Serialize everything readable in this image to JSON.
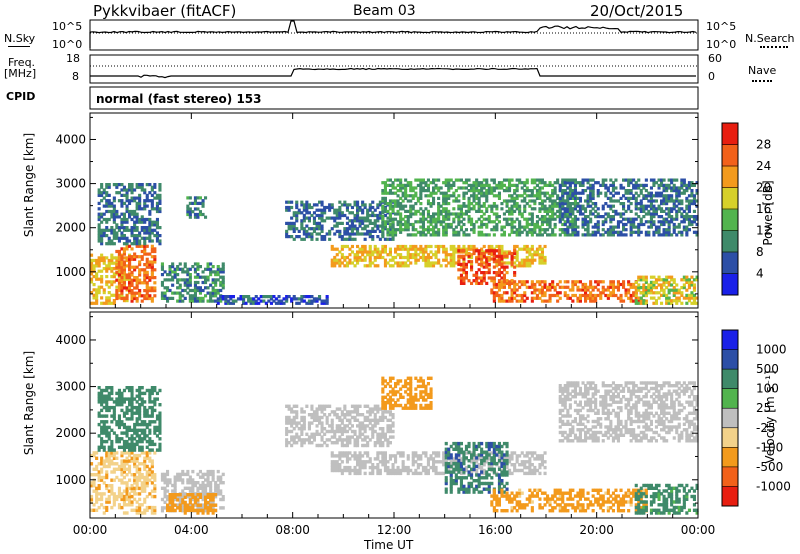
{
  "header": {
    "station": "Pykkvibaer (fitACF)",
    "beam": "Beam 03",
    "date": "20/Oct/2015"
  },
  "nsky_panel": {
    "left_label": "N.Sky",
    "left_tick_top": "10^5",
    "left_tick_bottom": "10^0",
    "right_tick_top": "10^5",
    "right_tick_bottom": "10^0",
    "right_label": "N.Search"
  },
  "freq_panel": {
    "left_label_1": "Freq.",
    "left_label_2": "[MHz]",
    "left_tick_top": "18",
    "left_tick_bottom": "8",
    "right_tick_top": "60",
    "right_tick_bottom": "0",
    "right_label": "Nave"
  },
  "cpid_panel": {
    "label": "CPID",
    "text": "normal (fast stereo) 153"
  },
  "x_axis": {
    "ticks": [
      "00:00",
      "04:00",
      "08:00",
      "12:00",
      "16:00",
      "20:00",
      "00:00"
    ],
    "label": "Time UT",
    "hours": [
      0,
      4,
      8,
      12,
      16,
      20,
      24
    ]
  },
  "power_panel": {
    "ylabel": "Slant Range [km]",
    "yticks": [
      "1000",
      "2000",
      "3000",
      "4000"
    ],
    "ytick_values": [
      1000,
      2000,
      3000,
      4000
    ],
    "ylim": [
      180,
      4600
    ],
    "colorbar_label": "Power [dB]",
    "colorbar_ticks": [
      "4",
      "8",
      "12",
      "16",
      "20",
      "24",
      "28"
    ],
    "colorbar_colors": [
      "#1a20e8",
      "#2c4fa6",
      "#3f8a6a",
      "#52b44e",
      "#d6d02a",
      "#f39a1c",
      "#f2611a",
      "#e81e10"
    ]
  },
  "velocity_panel": {
    "ylabel": "Slant Range [km]",
    "yticks": [
      "1000",
      "2000",
      "3000",
      "4000"
    ],
    "ytick_values": [
      1000,
      2000,
      3000,
      4000
    ],
    "ylim": [
      180,
      4600
    ],
    "colorbar_label": "Velocity [m s⁻¹]",
    "colorbar_ticks": [
      "1000",
      "500",
      "100",
      "25",
      "-25",
      "-100",
      "-500",
      "-1000"
    ],
    "colorbar_colors": [
      "#1a20e8",
      "#2c4fa6",
      "#3f8a6a",
      "#52b44e",
      "#bfbfbf",
      "#f3d28a",
      "#f39a1c",
      "#f2611a",
      "#e81e10"
    ]
  },
  "chart_data": [
    {
      "type": "heatmap",
      "title": "Power [dB]",
      "xlabel": "Time UT",
      "ylabel": "Slant Range [km]",
      "xlim_hours": [
        0,
        24
      ],
      "ylim": [
        180,
        4600
      ],
      "colorbar_ticks": [
        4,
        8,
        12,
        16,
        20,
        24,
        28
      ],
      "echo_regions": [
        {
          "t0": 0.0,
          "t1": 1.6,
          "r0": 250,
          "r1": 1400,
          "power_db": 20
        },
        {
          "t0": 1.0,
          "t1": 2.6,
          "r0": 300,
          "r1": 1600,
          "power_db": 25
        },
        {
          "t0": 0.3,
          "t1": 2.8,
          "r0": 1600,
          "r1": 3000,
          "power_db": 8
        },
        {
          "t0": 2.8,
          "t1": 5.3,
          "r0": 300,
          "r1": 1200,
          "power_db": 10
        },
        {
          "t0": 3.8,
          "t1": 4.6,
          "r0": 2200,
          "r1": 2700,
          "power_db": 10
        },
        {
          "t0": 5.0,
          "t1": 9.5,
          "r0": 250,
          "r1": 450,
          "power_db": 6
        },
        {
          "t0": 7.7,
          "t1": 12.0,
          "r0": 1700,
          "r1": 2600,
          "power_db": 8
        },
        {
          "t0": 9.5,
          "t1": 18.0,
          "r0": 1100,
          "r1": 1600,
          "power_db": 20
        },
        {
          "t0": 11.5,
          "t1": 19.2,
          "r0": 1800,
          "r1": 3100,
          "power_db": 12
        },
        {
          "t0": 14.5,
          "t1": 16.8,
          "r0": 700,
          "r1": 1500,
          "power_db": 27
        },
        {
          "t0": 15.8,
          "t1": 22.0,
          "r0": 300,
          "r1": 800,
          "power_db": 25
        },
        {
          "t0": 18.5,
          "t1": 24.0,
          "r0": 1800,
          "r1": 3100,
          "power_db": 8
        },
        {
          "t0": 21.5,
          "t1": 24.0,
          "r0": 250,
          "r1": 900,
          "power_db": 18
        }
      ]
    },
    {
      "type": "heatmap",
      "title": "Velocity [m s⁻¹]",
      "xlabel": "Time UT",
      "ylabel": "Slant Range [km]",
      "xlim_hours": [
        0,
        24
      ],
      "ylim": [
        180,
        4600
      ],
      "colorbar_ticks": [
        1000,
        500,
        100,
        25,
        -25,
        -100,
        -500,
        -1000
      ],
      "echo_regions": [
        {
          "t0": 0.0,
          "t1": 2.6,
          "r0": 250,
          "r1": 1600,
          "velocity": -80
        },
        {
          "t0": 0.3,
          "t1": 2.8,
          "r0": 1600,
          "r1": 3000,
          "velocity": 300
        },
        {
          "t0": 2.8,
          "t1": 5.3,
          "r0": 300,
          "r1": 1200,
          "velocity": 0
        },
        {
          "t0": 3.0,
          "t1": 5.0,
          "r0": 250,
          "r1": 700,
          "velocity": -200
        },
        {
          "t0": 7.7,
          "t1": 12.0,
          "r0": 1700,
          "r1": 2600,
          "velocity": 0
        },
        {
          "t0": 9.5,
          "t1": 18.0,
          "r0": 1100,
          "r1": 1600,
          "velocity": 0
        },
        {
          "t0": 11.5,
          "t1": 13.5,
          "r0": 2500,
          "r1": 3200,
          "velocity": -300
        },
        {
          "t0": 14.0,
          "t1": 16.5,
          "r0": 700,
          "r1": 1800,
          "velocity": 400
        },
        {
          "t0": 15.8,
          "t1": 22.0,
          "r0": 300,
          "r1": 800,
          "velocity": -150
        },
        {
          "t0": 18.5,
          "t1": 24.0,
          "r0": 1800,
          "r1": 3100,
          "velocity": 0
        },
        {
          "t0": 21.5,
          "t1": 24.0,
          "r0": 250,
          "r1": 900,
          "velocity": 150
        }
      ]
    }
  ]
}
